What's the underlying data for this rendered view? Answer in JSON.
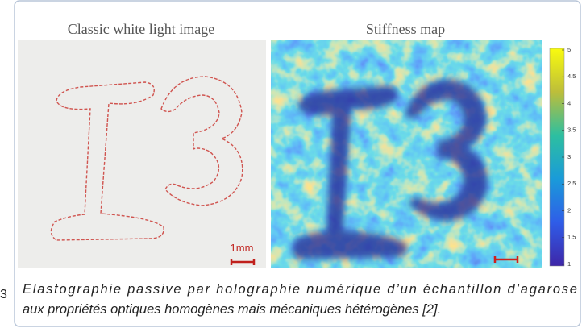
{
  "figure": {
    "left_panel": {
      "title": "Classic white light image",
      "scale_label": "1mm"
    },
    "right_panel": {
      "title": "Stiffness map"
    },
    "colorbar": {
      "lim": [
        1,
        5
      ],
      "ticks": [
        1,
        1.5,
        2,
        2.5,
        3,
        3.5,
        4,
        4.5,
        5
      ]
    },
    "margin_text": "3",
    "caption": {
      "lines": [
        "Elastographie passive par holographie numérique d’un échantillon d’agarose",
        "aux propriétés optiques homogènes mais mécaniques hétérogènes [2]."
      ]
    }
  }
}
